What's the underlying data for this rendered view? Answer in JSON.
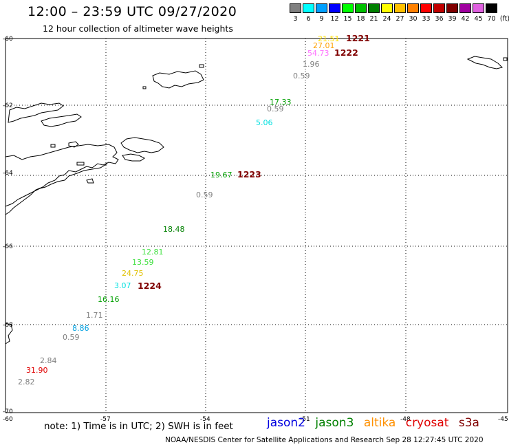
{
  "title": "12:00 – 23:59 UTC 09/27/2020",
  "subtitle": "12 hour collection of altimeter wave heights",
  "legend": {
    "unit": "(ft)",
    "items": [
      {
        "label": "3",
        "color": "#808080"
      },
      {
        "label": "6",
        "color": "#00ffff"
      },
      {
        "label": "9",
        "color": "#00a0ff"
      },
      {
        "label": "12",
        "color": "#0000ff"
      },
      {
        "label": "15",
        "color": "#00ff00"
      },
      {
        "label": "18",
        "color": "#00c000"
      },
      {
        "label": "21",
        "color": "#008000"
      },
      {
        "label": "24",
        "color": "#ffff00"
      },
      {
        "label": "27",
        "color": "#ffc000"
      },
      {
        "label": "30",
        "color": "#ff8000"
      },
      {
        "label": "33",
        "color": "#ff0000"
      },
      {
        "label": "36",
        "color": "#c00000"
      },
      {
        "label": "39",
        "color": "#800000"
      },
      {
        "label": "42",
        "color": "#a000a0"
      },
      {
        "label": "45",
        "color": "#e060e0"
      },
      {
        "label": "70",
        "color": "#000000"
      }
    ]
  },
  "axes": {
    "lat_labels": [
      "-60",
      "-62",
      "-64",
      "-66",
      "-68",
      "-70"
    ],
    "lon_labels": [
      "-60",
      "-57",
      "-54",
      "-51",
      "-48",
      "-45"
    ]
  },
  "observations": [
    {
      "text": "21.51",
      "color": "#ffe000"
    },
    {
      "text": "27.01",
      "color": "#ffa000"
    },
    {
      "text": "54.73",
      "color": "#ff70ff"
    },
    {
      "text": "1.96",
      "color": "#808080"
    },
    {
      "text": "0.59",
      "color": "#808080"
    },
    {
      "text": "17.33",
      "color": "#00a000"
    },
    {
      "text": "0.59",
      "color": "#808080"
    },
    {
      "text": "5.06",
      "color": "#00e0e0"
    },
    {
      "text": "19.67",
      "color": "#00a000"
    },
    {
      "text": "0.59",
      "color": "#808080"
    },
    {
      "text": "18.48",
      "color": "#008000"
    },
    {
      "text": "12.81",
      "color": "#40e040"
    },
    {
      "text": "13.59",
      "color": "#40e040"
    },
    {
      "text": "24.75",
      "color": "#e0c000"
    },
    {
      "text": "3.07",
      "color": "#00e0e0"
    },
    {
      "text": "16.16",
      "color": "#00a000"
    },
    {
      "text": "1.71",
      "color": "#808080"
    },
    {
      "text": "8.86",
      "color": "#00a0e0"
    },
    {
      "text": "0.59",
      "color": "#808080"
    },
    {
      "text": "2.84",
      "color": "#808080"
    },
    {
      "text": "31.90",
      "color": "#e00000"
    },
    {
      "text": "2.82",
      "color": "#808080"
    }
  ],
  "pass_labels": [
    "1221",
    "1222",
    "1223",
    "1224"
  ],
  "note": "note:  1) Time is in UTC;  2) SWH is in feet",
  "satellites": [
    {
      "name": "jason2",
      "color": "#0000e0"
    },
    {
      "name": "jason3",
      "color": "#008000"
    },
    {
      "name": "altika",
      "color": "#ff9000"
    },
    {
      "name": "cryosat",
      "color": "#e00000"
    },
    {
      "name": "s3a",
      "color": "#800000"
    }
  ],
  "credit": "NOAA/NESDIS Center for Satellite Applications and Research    Sep 28 12:27:45 UTC 2020"
}
